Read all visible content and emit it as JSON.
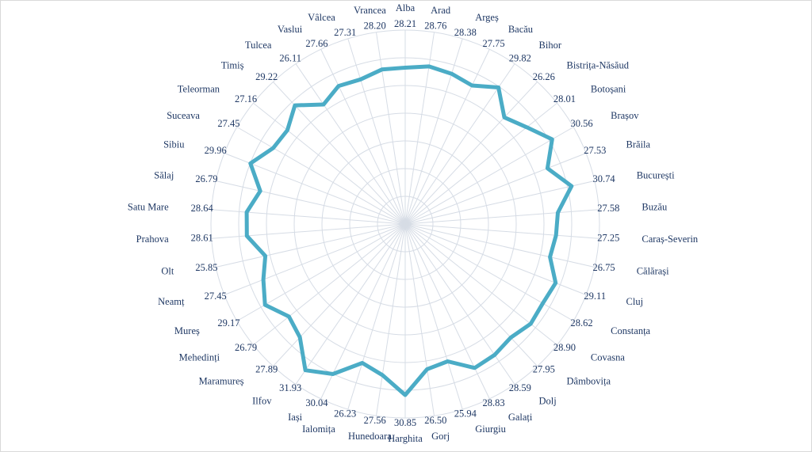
{
  "chart_data": {
    "type": "radar",
    "categories": [
      "Alba",
      "Arad",
      "Argeș",
      "Bacău",
      "Bihor",
      "Bistrița-Năsăud",
      "Botoșani",
      "Brașov",
      "Brăila",
      "București",
      "Buzău",
      "Caraș-Severin",
      "Călărași",
      "Cluj",
      "Constanța",
      "Covasna",
      "Dâmbovița",
      "Dolj",
      "Galați",
      "Giurgiu",
      "Gorj",
      "Harghita",
      "Hunedoara",
      "Ialomița",
      "Iași",
      "Ilfov",
      "Maramureș",
      "Mehedinți",
      "Mureș",
      "Neamț",
      "Olt",
      "Prahova",
      "Satu Mare",
      "Sălaj",
      "Sibiu",
      "Suceava",
      "Teleorman",
      "Timiș",
      "Tulcea",
      "Vaslui",
      "Vâlcea",
      "Vrancea"
    ],
    "values": [
      28.21,
      28.76,
      28.38,
      27.75,
      29.82,
      26.26,
      28.01,
      30.56,
      27.53,
      30.74,
      27.58,
      27.25,
      26.75,
      29.11,
      28.62,
      28.9,
      27.95,
      28.59,
      28.83,
      25.94,
      26.5,
      30.85,
      27.56,
      26.23,
      30.04,
      31.93,
      27.89,
      26.79,
      29.17,
      27.45,
      25.85,
      28.61,
      28.64,
      26.79,
      29.96,
      27.45,
      27.16,
      29.22,
      26.11,
      27.66,
      27.31,
      28.2
    ],
    "value_labels": [
      "28.21",
      "28.76",
      "28.38",
      "27.75",
      "29.82",
      "26.26",
      "28.01",
      "30.56",
      "27.53",
      "30.74",
      "27.58",
      "27.25",
      "26.75",
      "29.11",
      "28.62",
      "28.90",
      "27.95",
      "28.59",
      "28.83",
      "25.94",
      "26.50",
      "30.85",
      "27.56",
      "26.23",
      "30.04",
      "31.93",
      "27.89",
      "26.79",
      "29.17",
      "27.45",
      "25.85",
      "28.61",
      "28.64",
      "26.79",
      "29.96",
      "27.45",
      "27.16",
      "29.22",
      "26.11",
      "27.66",
      "27.31",
      "28.20"
    ],
    "color": "#4bacc6",
    "rlim": [
      0,
      35
    ],
    "rticks": [
      5,
      10,
      15,
      20,
      25,
      30,
      35
    ],
    "grid": true
  }
}
